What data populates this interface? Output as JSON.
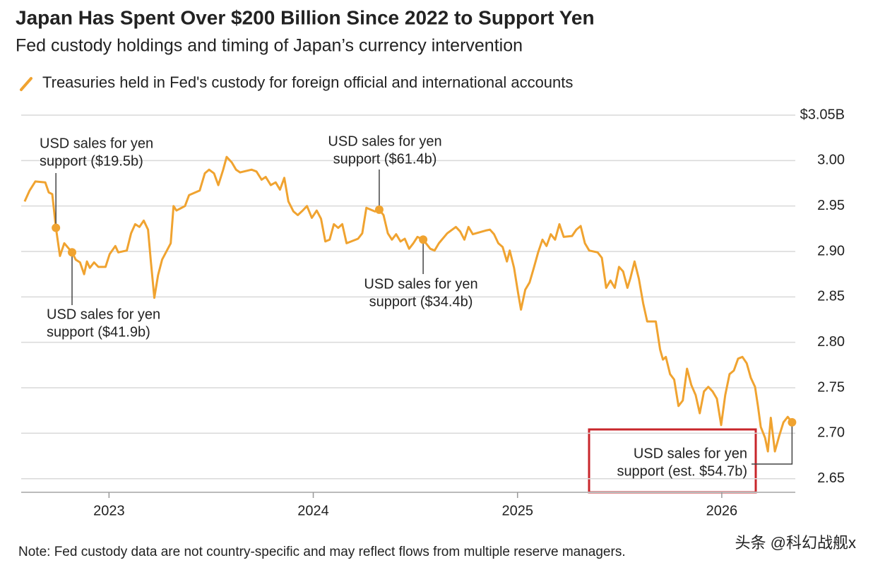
{
  "chart_data": {
    "type": "line",
    "title": "Japan Has Spent Over $200 Billion Since 2022 to Support Yen",
    "subtitle": "Fed custody holdings and timing of Japan’s currency intervention",
    "note": "Note: Fed custody data are not country-specific and may reflect flows from multiple reserve managers.",
    "watermark": "头条 @科幻战舰x",
    "xlim": [
      2022.57,
      2026.36
    ],
    "xticks": [
      2023,
      2024,
      2025,
      2026
    ],
    "ylim": [
      2.635,
      3.05
    ],
    "yticks": [
      {
        "value": 3.05,
        "label": "$3.05B"
      },
      {
        "value": 3,
        "label": "3.00"
      },
      2.95,
      {
        "value": 2.9,
        "label": "2.90"
      },
      2.85,
      {
        "value": 2.8,
        "label": "2.80"
      },
      2.75,
      {
        "value": 2.7,
        "label": "2.70"
      },
      2.65
    ],
    "grid": true,
    "x": [
      2022.587,
      2022.611,
      2022.639,
      2022.688,
      2022.705,
      2022.722,
      2022.74,
      2022.76,
      2022.781,
      2022.819,
      2022.837,
      2022.858,
      2022.878,
      2022.892,
      2022.906,
      2022.927,
      2022.948,
      2022.983,
      2023.003,
      2023.031,
      2023.045,
      2023.087,
      2023.108,
      2023.128,
      2023.149,
      2023.17,
      2023.191,
      2023.205,
      2023.222,
      2023.24,
      2023.26,
      2023.302,
      2023.316,
      2023.33,
      2023.372,
      2023.392,
      2023.444,
      2023.469,
      2023.49,
      2023.514,
      2023.535,
      2023.559,
      2023.576,
      2023.601,
      2023.622,
      2023.642,
      2023.698,
      2023.722,
      2023.747,
      2023.767,
      2023.792,
      2023.816,
      2023.837,
      2023.858,
      2023.878,
      2023.903,
      2023.924,
      2023.948,
      2023.969,
      2023.993,
      2024.017,
      2024.038,
      2024.059,
      2024.08,
      2024.101,
      2024.122,
      2024.142,
      2024.163,
      2024.219,
      2024.24,
      2024.26,
      2024.302,
      2024.323,
      2024.344,
      2024.365,
      2024.385,
      2024.406,
      2024.427,
      2024.448,
      2024.469,
      2024.49,
      2024.51,
      2024.538,
      2024.573,
      2024.594,
      2024.615,
      2024.656,
      2024.698,
      2024.719,
      2024.74,
      2024.76,
      2024.781,
      2024.844,
      2024.865,
      2024.885,
      2024.906,
      2024.927,
      2024.948,
      2024.962,
      2024.983,
      2025.003,
      2025.017,
      2025.038,
      2025.059,
      2025.08,
      2025.101,
      2025.122,
      2025.142,
      2025.163,
      2025.184,
      2025.205,
      2025.226,
      2025.267,
      2025.288,
      2025.309,
      2025.33,
      2025.351,
      2025.392,
      2025.413,
      2025.434,
      2025.455,
      2025.476,
      2025.497,
      2025.517,
      2025.538,
      2025.552,
      2025.573,
      2025.594,
      2025.615,
      2025.635,
      2025.677,
      2025.698,
      2025.712,
      2025.726,
      2025.747,
      2025.767,
      2025.788,
      2025.809,
      2025.83,
      2025.851,
      2025.872,
      2025.892,
      2025.913,
      2025.934,
      2025.955,
      2025.976,
      2025.997,
      2026.017,
      2026.038,
      2026.059,
      2026.08,
      2026.101,
      2026.122,
      2026.142,
      2026.163,
      2026.177,
      2026.191,
      2026.212,
      2026.226,
      2026.24,
      2026.26,
      2026.281,
      2026.302,
      2026.323,
      2026.344
    ],
    "series": [
      {
        "name": "Treasuries held in Fed's custody for foreign official and international accounts",
        "color": "#f0a330",
        "values": [
          2.955,
          2.967,
          2.977,
          2.976,
          2.965,
          2.963,
          2.926,
          2.895,
          2.909,
          2.899,
          2.891,
          2.888,
          2.875,
          2.889,
          2.882,
          2.888,
          2.883,
          2.883,
          2.897,
          2.906,
          2.899,
          2.901,
          2.92,
          2.93,
          2.927,
          2.934,
          2.924,
          2.889,
          2.849,
          2.874,
          2.891,
          2.909,
          2.95,
          2.945,
          2.95,
          2.962,
          2.967,
          2.986,
          2.99,
          2.986,
          2.973,
          2.99,
          3.004,
          2.998,
          2.99,
          2.987,
          2.99,
          2.988,
          2.979,
          2.982,
          2.973,
          2.976,
          2.968,
          2.981,
          2.955,
          2.944,
          2.94,
          2.945,
          2.95,
          2.937,
          2.945,
          2.936,
          2.911,
          2.913,
          2.93,
          2.926,
          2.93,
          2.909,
          2.914,
          2.92,
          2.948,
          2.944,
          2.946,
          2.94,
          2.92,
          2.913,
          2.919,
          2.911,
          2.914,
          2.903,
          2.909,
          2.916,
          2.913,
          2.903,
          2.901,
          2.909,
          2.92,
          2.927,
          2.922,
          2.913,
          2.927,
          2.919,
          2.923,
          2.924,
          2.919,
          2.909,
          2.905,
          2.889,
          2.901,
          2.882,
          2.854,
          2.836,
          2.858,
          2.866,
          2.882,
          2.899,
          2.913,
          2.906,
          2.919,
          2.913,
          2.93,
          2.916,
          2.917,
          2.924,
          2.928,
          2.909,
          2.901,
          2.899,
          2.893,
          2.86,
          2.868,
          2.86,
          2.883,
          2.878,
          2.86,
          2.87,
          2.889,
          2.87,
          2.843,
          2.823,
          2.823,
          2.792,
          2.781,
          2.784,
          2.765,
          2.759,
          2.73,
          2.736,
          2.771,
          2.753,
          2.742,
          2.722,
          2.746,
          2.751,
          2.746,
          2.738,
          2.709,
          2.742,
          2.765,
          2.769,
          2.782,
          2.784,
          2.777,
          2.761,
          2.751,
          2.73,
          2.707,
          2.695,
          2.68,
          2.717,
          2.68,
          2.697,
          2.712,
          2.718,
          2.712
        ]
      }
    ],
    "annotations": [
      {
        "text": [
          "USD sales for yen",
          "support ($19.5b)"
        ],
        "x": 2022.74,
        "y": 2.926
      },
      {
        "text": [
          "USD sales for yen",
          "support ($41.9b)"
        ],
        "x": 2022.819,
        "y": 2.899
      },
      {
        "text": [
          "USD sales for yen",
          "support ($61.4b)"
        ],
        "x": 2024.323,
        "y": 2.946
      },
      {
        "text": [
          "USD sales for yen",
          "support ($34.4b)"
        ],
        "x": 2024.538,
        "y": 2.913
      },
      {
        "text": [
          "USD sales for yen",
          "support (est. $54.7b)"
        ],
        "x": 2026.344,
        "y": 2.712
      }
    ]
  }
}
